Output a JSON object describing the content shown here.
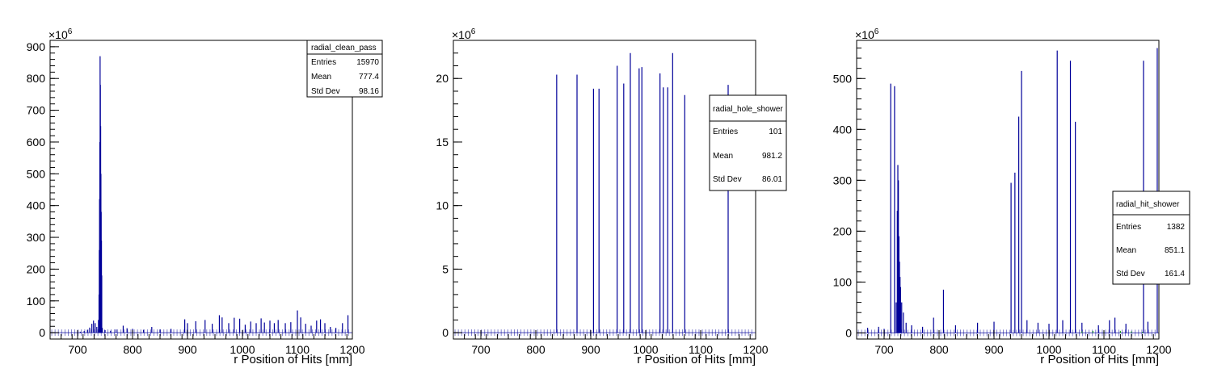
{
  "chart_data": [
    {
      "type": "histogram",
      "id": "radial_clean_pass",
      "xlabel": "r Position of Hits [mm]",
      "ylabel": "",
      "y_multiplier": "×10",
      "y_multiplier_exp": "6",
      "xlim": [
        650,
        1200
      ],
      "ylim": [
        -20,
        920
      ],
      "xticks": [
        700,
        800,
        900,
        1000,
        1100,
        1200
      ],
      "yticks": [
        0,
        100,
        200,
        300,
        400,
        500,
        600,
        700,
        800,
        900
      ],
      "stats": {
        "title": "radial_clean_pass",
        "rows": [
          {
            "label": "Entries",
            "value": "15970"
          },
          {
            "label": "Mean",
            "value": "777.4"
          },
          {
            "label": "Std Dev",
            "value": "98.16"
          }
        ]
      },
      "series": [
        {
          "color": "#000099",
          "points": [
            [
              705,
              3
            ],
            [
              712,
              5
            ],
            [
              718,
              9
            ],
            [
              722,
              16
            ],
            [
              726,
              28
            ],
            [
              729,
              38
            ],
            [
              732,
              30
            ],
            [
              735,
              18
            ],
            [
              738,
              40
            ],
            [
              739,
              120
            ],
            [
              739.5,
              260
            ],
            [
              740,
              420
            ],
            [
              740.5,
              600
            ],
            [
              741,
              870
            ],
            [
              741.5,
              780
            ],
            [
              742,
              650
            ],
            [
              742.5,
              500
            ],
            [
              743,
              380
            ],
            [
              743.5,
              290
            ],
            [
              744,
              180
            ],
            [
              745,
              15
            ],
            [
              750,
              8
            ],
            [
              760,
              6
            ],
            [
              770,
              10
            ],
            [
              783,
              22
            ],
            [
              790,
              14
            ],
            [
              800,
              12
            ],
            [
              820,
              9
            ],
            [
              835,
              18
            ],
            [
              850,
              10
            ],
            [
              870,
              12
            ],
            [
              895,
              42
            ],
            [
              900,
              30
            ],
            [
              915,
              36
            ],
            [
              932,
              40
            ],
            [
              945,
              28
            ],
            [
              958,
              55
            ],
            [
              963,
              48
            ],
            [
              975,
              30
            ],
            [
              985,
              47
            ],
            [
              995,
              44
            ],
            [
              1005,
              25
            ],
            [
              1015,
              35
            ],
            [
              1025,
              30
            ],
            [
              1034,
              45
            ],
            [
              1040,
              32
            ],
            [
              1050,
              38
            ],
            [
              1058,
              30
            ],
            [
              1065,
              40
            ],
            [
              1078,
              30
            ],
            [
              1088,
              33
            ],
            [
              1100,
              70
            ],
            [
              1106,
              48
            ],
            [
              1115,
              28
            ],
            [
              1125,
              22
            ],
            [
              1135,
              38
            ],
            [
              1142,
              42
            ],
            [
              1150,
              30
            ],
            [
              1160,
              18
            ],
            [
              1170,
              15
            ],
            [
              1182,
              30
            ],
            [
              1192,
              55
            ]
          ]
        }
      ]
    },
    {
      "type": "histogram",
      "id": "radial_hole_shower",
      "xlabel": "r Position of Hits [mm]",
      "ylabel": "",
      "y_multiplier": "×10",
      "y_multiplier_exp": "6",
      "xlim": [
        650,
        1200
      ],
      "ylim": [
        -0.5,
        23.0
      ],
      "xticks": [
        700,
        800,
        900,
        1000,
        1100,
        1200
      ],
      "yticks": [
        0,
        5,
        10,
        15,
        20
      ],
      "stats": {
        "title": "radial_hole_shower",
        "rows": [
          {
            "label": "Entries",
            "value": "101"
          },
          {
            "label": "Mean",
            "value": "981.2"
          },
          {
            "label": "Std Dev",
            "value": "86.01"
          }
        ]
      },
      "series": [
        {
          "color": "#000099",
          "points": [
            [
              838,
              20.3
            ],
            [
              875,
              20.3
            ],
            [
              905,
              19.2
            ],
            [
              915,
              19.2
            ],
            [
              948,
              21.0
            ],
            [
              960,
              19.6
            ],
            [
              972,
              22.0
            ],
            [
              988,
              20.8
            ],
            [
              993,
              20.9
            ],
            [
              1026,
              20.4
            ],
            [
              1032,
              19.3
            ],
            [
              1040,
              19.3
            ],
            [
              1049,
              22.0
            ],
            [
              1071,
              18.7
            ],
            [
              1150,
              19.5
            ]
          ]
        }
      ]
    },
    {
      "type": "histogram",
      "id": "radial_hit_shower",
      "xlabel": "r Position of Hits [mm]",
      "ylabel": "",
      "y_multiplier": "×10",
      "y_multiplier_exp": "6",
      "xlim": [
        650,
        1200
      ],
      "ylim": [
        -12,
        575
      ],
      "xticks": [
        700,
        800,
        900,
        1000,
        1100,
        1200
      ],
      "yticks": [
        0,
        100,
        200,
        300,
        400,
        500
      ],
      "stats": {
        "title": "radial_hit_shower",
        "rows": [
          {
            "label": "Entries",
            "value": "1382"
          },
          {
            "label": "Mean",
            "value": "851.1"
          },
          {
            "label": "Std Dev",
            "value": "161.4"
          }
        ]
      },
      "series": [
        {
          "color": "#000099",
          "points": [
            [
              670,
              10
            ],
            [
              690,
              12
            ],
            [
              700,
              8
            ],
            [
              712,
              490
            ],
            [
              719,
              485
            ],
            [
              722,
              60
            ],
            [
              724,
              240
            ],
            [
              725,
              330
            ],
            [
              726,
              300
            ],
            [
              727,
              190
            ],
            [
              728,
              140
            ],
            [
              729,
              110
            ],
            [
              730,
              90
            ],
            [
              732,
              60
            ],
            [
              735,
              40
            ],
            [
              740,
              20
            ],
            [
              750,
              15
            ],
            [
              770,
              12
            ],
            [
              790,
              30
            ],
            [
              808,
              85
            ],
            [
              830,
              15
            ],
            [
              870,
              20
            ],
            [
              900,
              22
            ],
            [
              931,
              295
            ],
            [
              938,
              315
            ],
            [
              945,
              425
            ],
            [
              950,
              515
            ],
            [
              960,
              25
            ],
            [
              980,
              20
            ],
            [
              1000,
              18
            ],
            [
              1015,
              555
            ],
            [
              1025,
              25
            ],
            [
              1039,
              535
            ],
            [
              1048,
              415
            ],
            [
              1060,
              20
            ],
            [
              1090,
              15
            ],
            [
              1110,
              25
            ],
            [
              1120,
              30
            ],
            [
              1140,
              18
            ],
            [
              1172,
              535
            ],
            [
              1180,
              22
            ],
            [
              1197,
              560
            ]
          ]
        },
        {
          "color": "#22aa22",
          "points": [
            [
              1060,
              3
            ],
            [
              1080,
              4
            ],
            [
              1100,
              3
            ],
            [
              1130,
              4
            ],
            [
              1150,
              3
            ],
            [
              1170,
              2
            ]
          ]
        }
      ]
    }
  ]
}
